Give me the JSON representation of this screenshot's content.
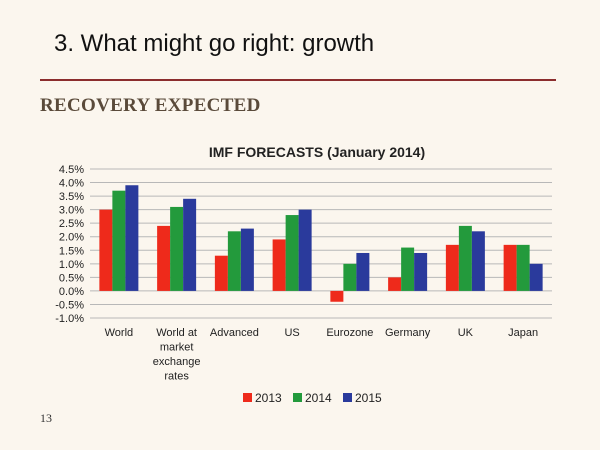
{
  "slide": {
    "title": "3. What might go right: growth",
    "subtitle": "RECOVERY EXPECTED",
    "page_number": "13"
  },
  "chart_data": {
    "type": "bar",
    "title": "IMF FORECASTS (January 2014)",
    "categories": [
      [
        "World"
      ],
      [
        "World at",
        "market",
        "exchange",
        "rates"
      ],
      [
        "Advanced"
      ],
      [
        "US"
      ],
      [
        "Eurozone"
      ],
      [
        "Germany"
      ],
      [
        "UK"
      ],
      [
        "Japan"
      ]
    ],
    "series": [
      {
        "name": "2013",
        "color": "#ee2a1b",
        "values": [
          3.0,
          2.4,
          1.3,
          1.9,
          -0.4,
          0.5,
          1.7,
          1.7
        ]
      },
      {
        "name": "2014",
        "color": "#239a3c",
        "values": [
          3.7,
          3.1,
          2.2,
          2.8,
          1.0,
          1.6,
          2.4,
          1.7
        ]
      },
      {
        "name": "2015",
        "color": "#2a3a9c",
        "values": [
          3.9,
          3.4,
          2.3,
          3.0,
          1.4,
          1.4,
          2.2,
          1.0
        ]
      }
    ],
    "yticks": [
      "4.5%",
      "4.0%",
      "3.5%",
      "3.0%",
      "2.5%",
      "2.0%",
      "1.5%",
      "1.0%",
      "0.5%",
      "0.0%",
      "-0.5%",
      "-1.0%"
    ],
    "ylim": [
      -1.0,
      4.5
    ],
    "grid": true,
    "legend": "bottom"
  }
}
